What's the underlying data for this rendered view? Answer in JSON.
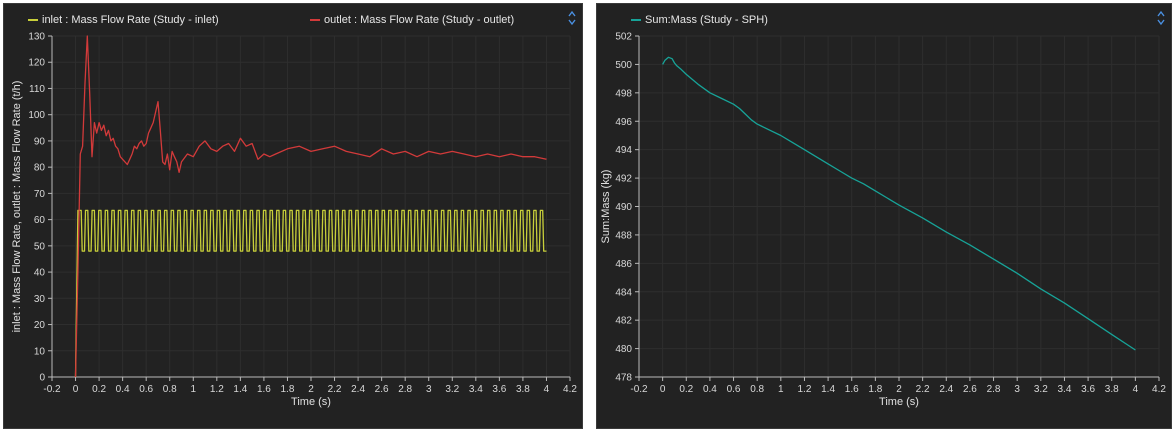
{
  "chart_data": [
    {
      "type": "line",
      "xlabel": "Time (s)",
      "ylabel": "inlet : Mass Flow Rate, outlet : Mass Flow Rate (t/h)",
      "xlim": [
        -0.2,
        4.2
      ],
      "ylim": [
        0,
        130
      ],
      "xticks": [
        "-0.2",
        "0",
        "0.2",
        "0.4",
        "0.6",
        "0.8",
        "1",
        "1.2",
        "1.4",
        "1.6",
        "1.8",
        "2",
        "2.2",
        "2.4",
        "2.6",
        "2.8",
        "3",
        "3.2",
        "3.4",
        "3.6",
        "3.8",
        "4",
        "4.2"
      ],
      "yticks": [
        "0",
        "10",
        "20",
        "30",
        "40",
        "50",
        "60",
        "70",
        "80",
        "90",
        "100",
        "110",
        "120",
        "130"
      ],
      "grid": true,
      "legend_position": "top",
      "series": [
        {
          "name": "inlet : Mass Flow Rate (Study - inlet)",
          "color": "#c8cf3a",
          "kind": "oscillating",
          "x_start": 0.0,
          "x_end": 4.0,
          "low": 48,
          "high": 63.5,
          "period": 0.056,
          "startup": [
            [
              0.0,
              0
            ],
            [
              0.02,
              63.5
            ]
          ]
        },
        {
          "name": "outlet : Mass Flow Rate (Study - outlet)",
          "color": "#d23a3a",
          "x": [
            0,
            0.02,
            0.04,
            0.06,
            0.08,
            0.1,
            0.12,
            0.14,
            0.16,
            0.18,
            0.2,
            0.22,
            0.24,
            0.26,
            0.28,
            0.3,
            0.32,
            0.34,
            0.36,
            0.38,
            0.4,
            0.42,
            0.44,
            0.46,
            0.48,
            0.5,
            0.52,
            0.54,
            0.56,
            0.58,
            0.6,
            0.62,
            0.64,
            0.66,
            0.68,
            0.7,
            0.72,
            0.74,
            0.76,
            0.78,
            0.8,
            0.82,
            0.84,
            0.86,
            0.88,
            0.9,
            0.95,
            1.0,
            1.05,
            1.1,
            1.15,
            1.2,
            1.25,
            1.3,
            1.35,
            1.4,
            1.45,
            1.5,
            1.55,
            1.6,
            1.65,
            1.7,
            1.8,
            1.9,
            2.0,
            2.1,
            2.2,
            2.3,
            2.4,
            2.5,
            2.6,
            2.7,
            2.8,
            2.9,
            3.0,
            3.1,
            3.2,
            3.3,
            3.4,
            3.5,
            3.6,
            3.7,
            3.8,
            3.9,
            4.0
          ],
          "values": [
            0,
            40,
            85,
            88,
            112,
            130,
            108,
            84,
            97,
            93,
            97,
            94,
            96,
            92,
            94,
            90,
            91,
            88,
            87,
            84,
            83,
            82,
            81,
            83,
            85,
            88,
            87,
            89,
            90,
            88,
            89,
            93,
            95,
            97,
            101,
            105,
            94,
            82,
            81,
            85,
            79,
            86,
            84,
            82,
            78,
            82,
            85,
            84,
            88,
            90,
            87,
            86,
            88,
            89,
            86,
            91,
            88,
            89,
            83,
            85,
            84,
            85,
            87,
            88,
            86,
            87,
            88,
            86,
            85,
            84,
            87,
            85,
            86,
            84,
            86,
            85,
            86,
            85,
            84,
            85,
            84,
            85,
            84,
            84,
            83
          ]
        }
      ]
    },
    {
      "type": "line",
      "xlabel": "Time (s)",
      "ylabel": "Sum:Mass (kg)",
      "xlim": [
        -0.2,
        4.2
      ],
      "ylim": [
        478,
        502
      ],
      "xticks": [
        "-0.2",
        "0",
        "0.2",
        "0.4",
        "0.6",
        "0.8",
        "1",
        "1.2",
        "1.4",
        "1.6",
        "1.8",
        "2",
        "2.2",
        "2.4",
        "2.6",
        "2.8",
        "3",
        "3.2",
        "3.4",
        "3.6",
        "3.8",
        "4",
        "4.2"
      ],
      "yticks": [
        "478",
        "480",
        "482",
        "484",
        "486",
        "488",
        "490",
        "492",
        "494",
        "496",
        "498",
        "500",
        "502"
      ],
      "grid": true,
      "legend_position": "top",
      "series": [
        {
          "name": "Sum:Mass (Study - SPH)",
          "color": "#17a398",
          "x": [
            0,
            0.02,
            0.05,
            0.08,
            0.1,
            0.12,
            0.15,
            0.2,
            0.3,
            0.4,
            0.5,
            0.6,
            0.65,
            0.7,
            0.75,
            0.8,
            0.9,
            1.0,
            1.1,
            1.2,
            1.3,
            1.4,
            1.5,
            1.6,
            1.7,
            1.8,
            1.9,
            2.0,
            2.2,
            2.4,
            2.6,
            2.8,
            3.0,
            3.2,
            3.4,
            3.6,
            3.8,
            4.0
          ],
          "values": [
            500.0,
            500.3,
            500.5,
            500.4,
            500.1,
            499.9,
            499.7,
            499.3,
            498.6,
            498.0,
            497.6,
            497.2,
            496.9,
            496.5,
            496.1,
            495.8,
            495.4,
            495.0,
            494.5,
            494.0,
            493.5,
            493.0,
            492.5,
            492.0,
            491.6,
            491.1,
            490.6,
            490.1,
            489.2,
            488.2,
            487.3,
            486.3,
            485.3,
            484.2,
            483.2,
            482.1,
            481.0,
            479.9
          ]
        }
      ]
    }
  ]
}
